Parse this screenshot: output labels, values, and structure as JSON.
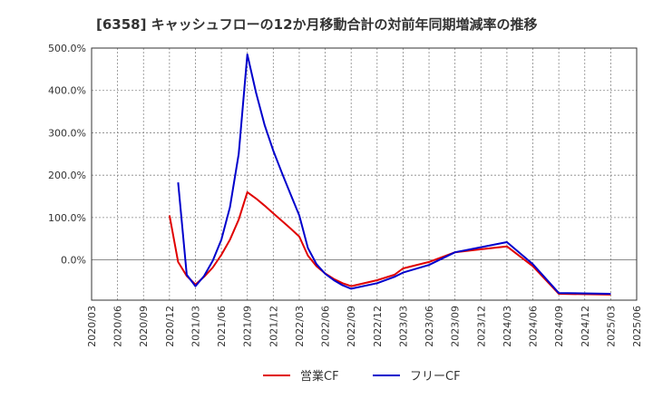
{
  "chart_data": {
    "type": "line",
    "title": "[6358]  キャッシュフローの12か月移動合計の対前年同期増減率の推移",
    "xlabel": "",
    "ylabel": "",
    "ylim": [
      -95,
      500
    ],
    "yticks": [
      0,
      100,
      200,
      300,
      400,
      500
    ],
    "ytick_labels": [
      "0.0%",
      "100.0%",
      "200.0%",
      "300.0%",
      "400.0%",
      "500.0%"
    ],
    "xlim": [
      "2020/03",
      "2025/06"
    ],
    "xtick_labels": [
      "2020/03",
      "2020/06",
      "2020/09",
      "2020/12",
      "2021/03",
      "2021/06",
      "2021/09",
      "2021/12",
      "2022/03",
      "2022/06",
      "2022/09",
      "2022/12",
      "2023/03",
      "2023/06",
      "2023/09",
      "2023/12",
      "2024/03",
      "2024/06",
      "2024/09",
      "2024/12",
      "2025/03",
      "2025/06"
    ],
    "grid": true,
    "legend_position": "bottom-center",
    "series": [
      {
        "name": "営業CF",
        "color": "#e00000",
        "points": [
          [
            "2020/12",
            105
          ],
          [
            "2021/01",
            -5
          ],
          [
            "2021/02",
            -38
          ],
          [
            "2021/03",
            -58
          ],
          [
            "2021/04",
            -40
          ],
          [
            "2021/05",
            -18
          ],
          [
            "2021/06",
            12
          ],
          [
            "2021/07",
            48
          ],
          [
            "2021/08",
            95
          ],
          [
            "2021/09",
            160
          ],
          [
            "2021/10",
            145
          ],
          [
            "2021/11",
            128
          ],
          [
            "2021/12",
            110
          ],
          [
            "2022/01",
            92
          ],
          [
            "2022/02",
            74
          ],
          [
            "2022/03",
            55
          ],
          [
            "2022/04",
            10
          ],
          [
            "2022/05",
            -15
          ],
          [
            "2022/06",
            -32
          ],
          [
            "2022/07",
            -45
          ],
          [
            "2022/08",
            -55
          ],
          [
            "2022/09",
            -62
          ],
          [
            "2022/12",
            -48
          ],
          [
            "2023/02",
            -35
          ],
          [
            "2023/03",
            -20
          ],
          [
            "2023/06",
            -5
          ],
          [
            "2023/09",
            18
          ],
          [
            "2023/12",
            25
          ],
          [
            "2024/03",
            32
          ],
          [
            "2024/06",
            -15
          ],
          [
            "2024/09",
            -80
          ],
          [
            "2025/03",
            -82
          ]
        ]
      },
      {
        "name": "フリーCF",
        "color": "#0000cc",
        "points": [
          [
            "2021/01",
            183
          ],
          [
            "2021/02",
            -35
          ],
          [
            "2021/03",
            -62
          ],
          [
            "2021/04",
            -38
          ],
          [
            "2021/05",
            -2
          ],
          [
            "2021/06",
            48
          ],
          [
            "2021/07",
            125
          ],
          [
            "2021/08",
            250
          ],
          [
            "2021/09",
            485
          ],
          [
            "2021/10",
            395
          ],
          [
            "2021/11",
            318
          ],
          [
            "2021/12",
            258
          ],
          [
            "2022/01",
            205
          ],
          [
            "2022/02",
            155
          ],
          [
            "2022/03",
            105
          ],
          [
            "2022/04",
            28
          ],
          [
            "2022/05",
            -10
          ],
          [
            "2022/06",
            -33
          ],
          [
            "2022/07",
            -48
          ],
          [
            "2022/08",
            -60
          ],
          [
            "2022/09",
            -68
          ],
          [
            "2022/12",
            -55
          ],
          [
            "2023/02",
            -40
          ],
          [
            "2023/03",
            -30
          ],
          [
            "2023/06",
            -12
          ],
          [
            "2023/09",
            18
          ],
          [
            "2023/12",
            30
          ],
          [
            "2024/03",
            42
          ],
          [
            "2024/06",
            -10
          ],
          [
            "2024/09",
            -78
          ],
          [
            "2025/03",
            -80
          ]
        ]
      }
    ]
  }
}
